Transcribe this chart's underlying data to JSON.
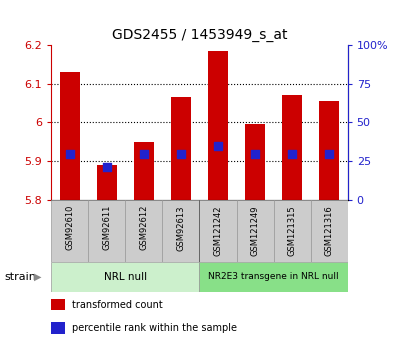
{
  "title": "GDS2455 / 1453949_s_at",
  "samples": [
    "GSM92610",
    "GSM92611",
    "GSM92612",
    "GSM92613",
    "GSM121242",
    "GSM121249",
    "GSM121315",
    "GSM121316"
  ],
  "transformed_counts": [
    6.13,
    5.89,
    5.95,
    6.065,
    6.185,
    5.995,
    6.07,
    6.055
  ],
  "percentile_ranks": [
    30,
    21,
    30,
    30,
    35,
    30,
    30,
    30
  ],
  "ylim_left": [
    5.8,
    6.2
  ],
  "ylim_right": [
    0,
    100
  ],
  "yticks_left": [
    5.8,
    5.9,
    6.0,
    6.1,
    6.2
  ],
  "ytick_labels_left": [
    "5.8",
    "5.9",
    "6",
    "6.1",
    "6.2"
  ],
  "yticks_right": [
    0,
    25,
    50,
    75,
    100
  ],
  "ytick_labels_right": [
    "0",
    "25",
    "50",
    "75",
    "100%"
  ],
  "bar_bottom": 5.8,
  "bar_color": "#cc0000",
  "dot_color": "#2222cc",
  "gridline_ticks": [
    5.9,
    6.0,
    6.1
  ],
  "groups": [
    {
      "label": "NRL null",
      "start": 0,
      "end": 4,
      "color": "#ccf0cc"
    },
    {
      "label": "NR2E3 transgene in NRL null",
      "start": 4,
      "end": 8,
      "color": "#88e088"
    }
  ],
  "strain_label": "strain",
  "legend_items": [
    {
      "color": "#cc0000",
      "label": "transformed count"
    },
    {
      "color": "#2222cc",
      "label": "percentile rank within the sample"
    }
  ],
  "sample_box_color": "#cccccc",
  "left_ylabel_color": "#cc0000",
  "right_ylabel_color": "#2222cc",
  "dot_size": 35,
  "bar_width": 0.55,
  "title_fontsize": 10
}
